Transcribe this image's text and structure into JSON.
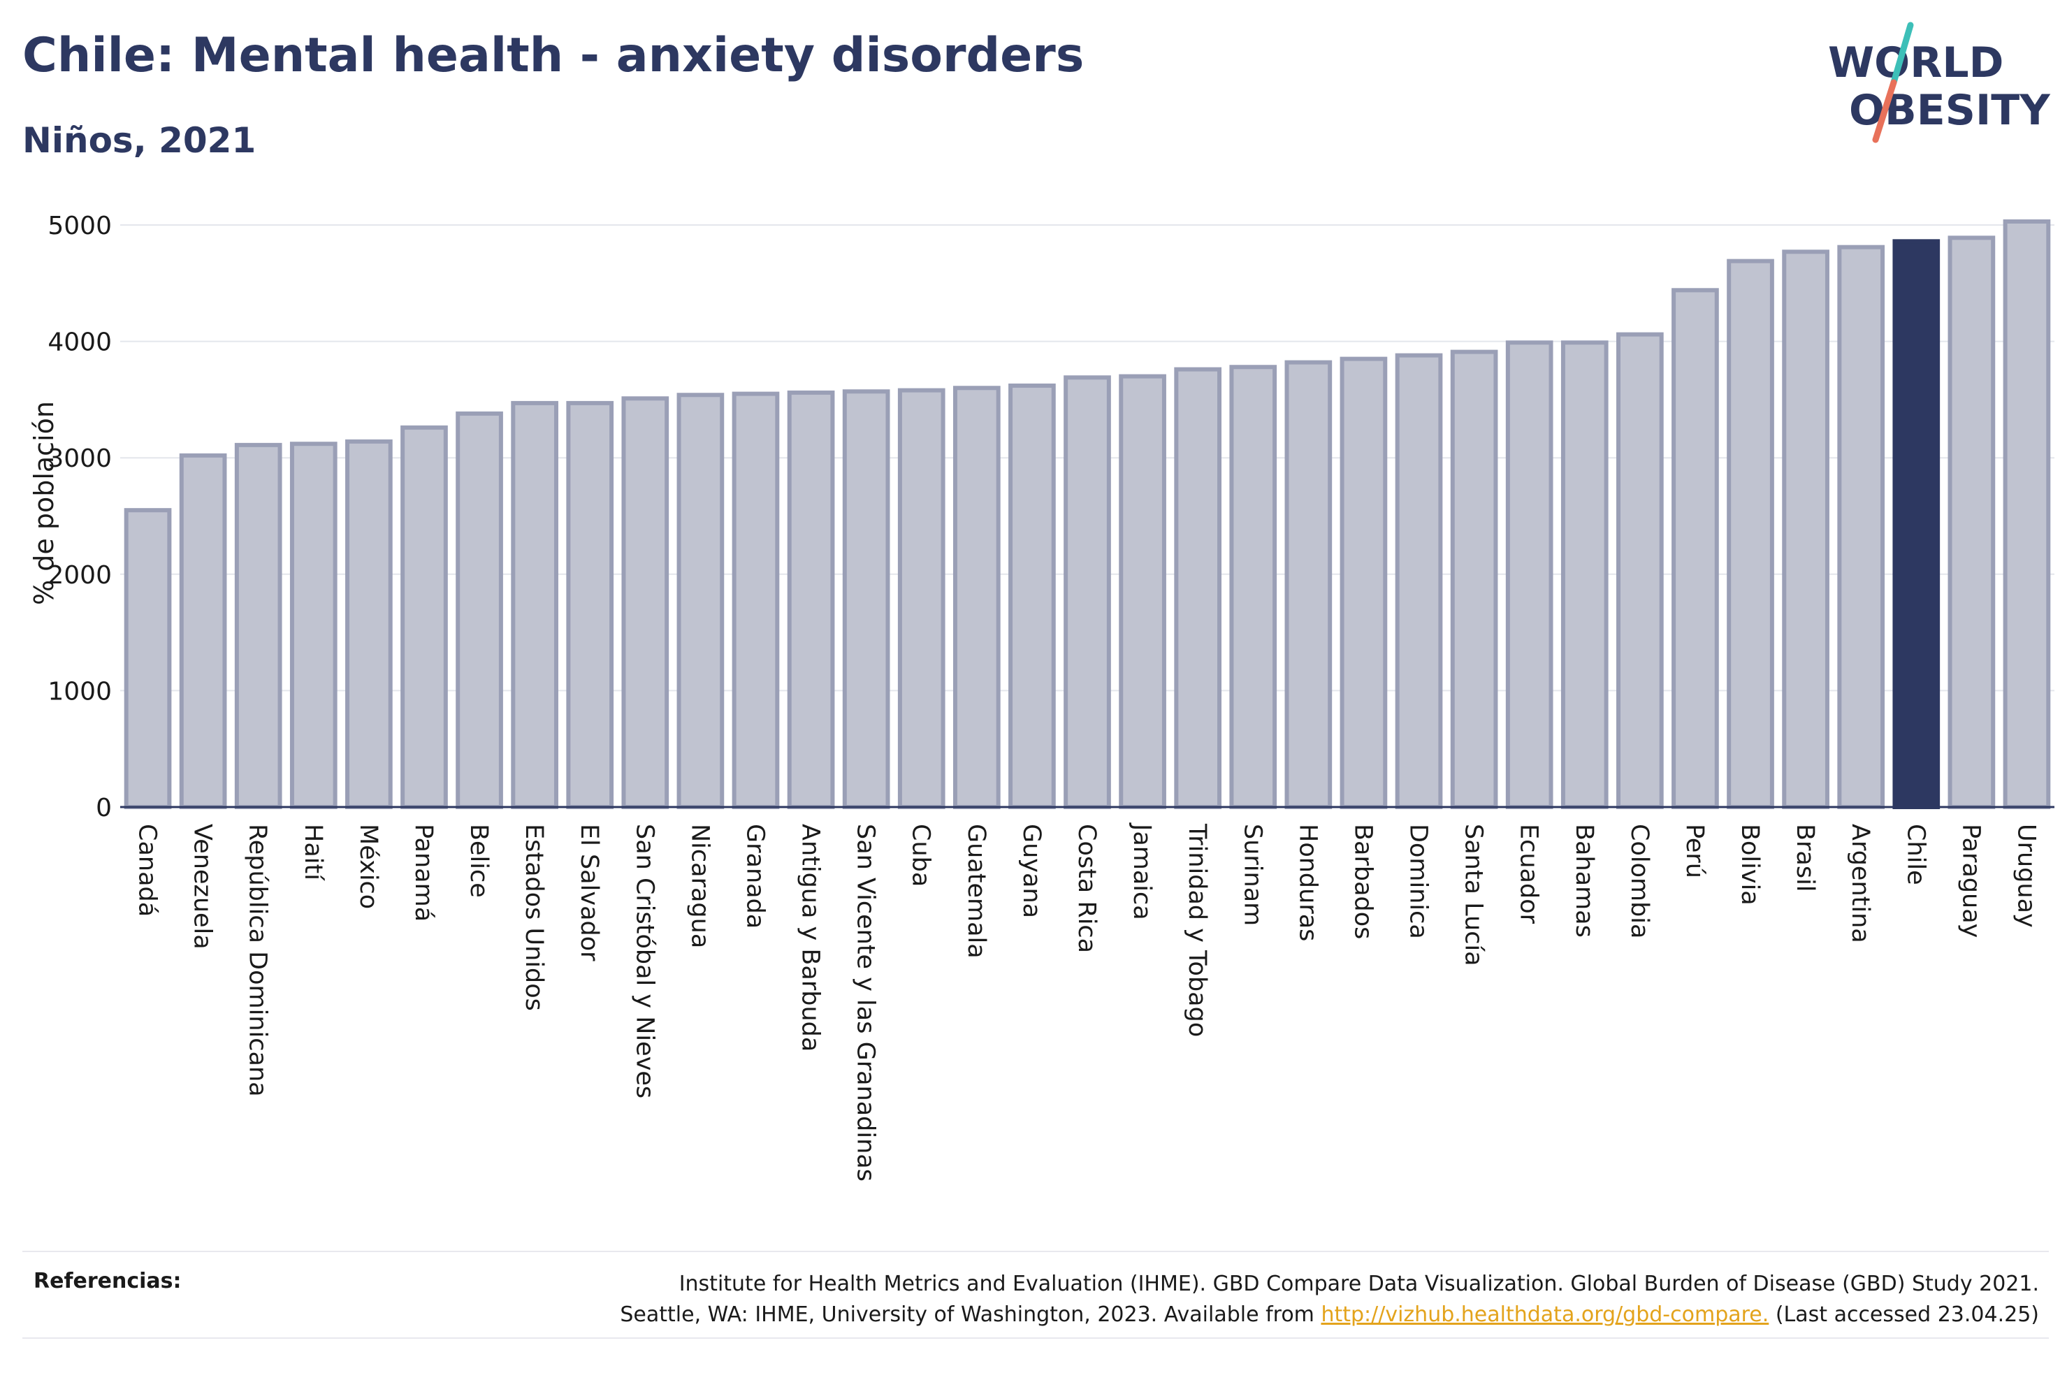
{
  "header": {
    "title": "Chile: Mental health - anxiety disorders",
    "subtitle": "Niños, 2021"
  },
  "logo": {
    "line1": "WORLD",
    "line2": "OBESITY",
    "text_color": "#2d3861",
    "slash_colors": [
      "#3dbfb8",
      "#e8715a"
    ]
  },
  "chart_data": {
    "type": "bar",
    "title": "",
    "xlabel": "",
    "ylabel": "% de población",
    "ylim": [
      0,
      5000
    ],
    "yticks": [
      0,
      1000,
      2000,
      3000,
      4000,
      5000
    ],
    "grid": true,
    "highlight": "Chile",
    "colors": {
      "bar_fill": "#c0c3d0",
      "bar_stroke": "#9a9fb6",
      "highlight": "#2d3861",
      "grid": "#e4e6ec",
      "axis": "#2d3861",
      "text": "#1a1a1a"
    },
    "categories": [
      "Canadá",
      "Venezuela",
      "República Dominicana",
      "Haití",
      "México",
      "Panamá",
      "Belice",
      "Estados Unidos",
      "El Salvador",
      "San Cristóbal y Nieves",
      "Nicaragua",
      "Granada",
      "Antigua y Barbuda",
      "San Vicente y las Granadinas",
      "Cuba",
      "Guatemala",
      "Guyana",
      "Costa Rica",
      "Jamaica",
      "Trinidad y Tobago",
      "Surinam",
      "Honduras",
      "Barbados",
      "Dominica",
      "Santa Lucía",
      "Ecuador",
      "Bahamas",
      "Colombia",
      "Perú",
      "Bolivia",
      "Brasil",
      "Argentina",
      "Chile",
      "Paraguay",
      "Uruguay"
    ],
    "values": [
      2550,
      3020,
      3110,
      3120,
      3140,
      3260,
      3380,
      3470,
      3470,
      3510,
      3540,
      3550,
      3560,
      3570,
      3580,
      3600,
      3620,
      3690,
      3700,
      3760,
      3780,
      3820,
      3850,
      3880,
      3910,
      3990,
      3990,
      4060,
      4440,
      4690,
      4770,
      4810,
      4860,
      4890,
      5030
    ]
  },
  "footer": {
    "label": "Referencias:",
    "line1": "Institute for Health Metrics and Evaluation (IHME). GBD Compare Data Visualization. Global Burden of Disease (GBD) Study 2021.",
    "line2_prefix": "Seattle, WA: IHME, University of Washington, 2023. Available from ",
    "link": "http://vizhub.healthdata.org/gbd-compare.",
    "line2_suffix": " (Last accessed 23.04.25)"
  }
}
